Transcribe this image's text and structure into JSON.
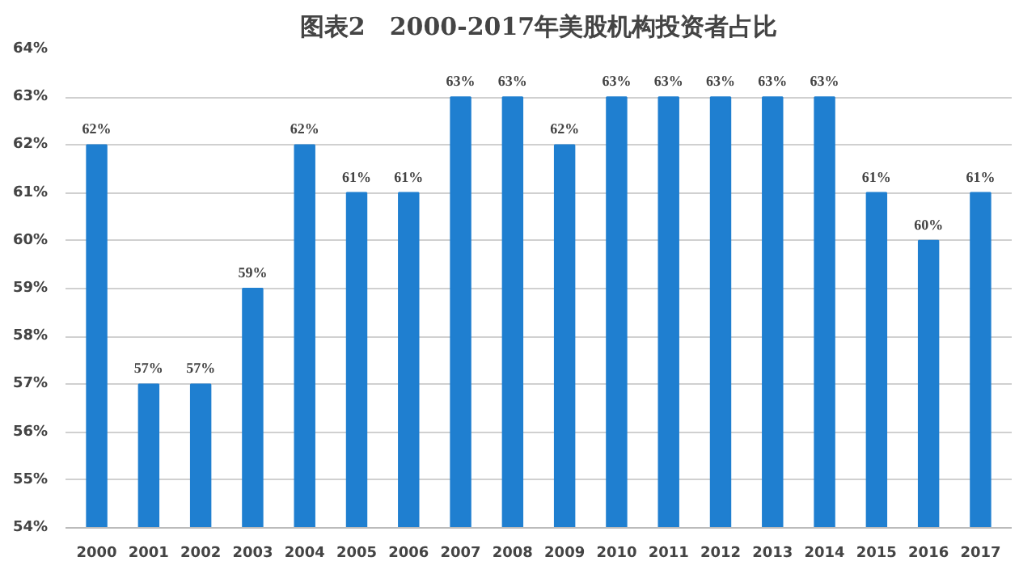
{
  "chart_data": {
    "type": "bar",
    "title": "图表2　2000-2017年美股机构投资者占比",
    "categories": [
      "2000",
      "2001",
      "2002",
      "2003",
      "2004",
      "2005",
      "2006",
      "2007",
      "2008",
      "2009",
      "2010",
      "2011",
      "2012",
      "2013",
      "2014",
      "2015",
      "2016",
      "2017"
    ],
    "values": [
      62,
      57,
      57,
      59,
      62,
      61,
      61,
      63,
      63,
      62,
      63,
      63,
      63,
      63,
      63,
      61,
      60,
      61
    ],
    "value_labels": [
      "62%",
      "57%",
      "57%",
      "59%",
      "62%",
      "61%",
      "61%",
      "63%",
      "63%",
      "62%",
      "63%",
      "63%",
      "63%",
      "63%",
      "63%",
      "61%",
      "60%",
      "61%"
    ],
    "color": "#1f7fd0",
    "ylim": [
      54,
      64
    ],
    "yticks": [
      {
        "value": 54,
        "label": "54%"
      },
      {
        "value": 55,
        "label": "55%"
      },
      {
        "value": 56,
        "label": "56%"
      },
      {
        "value": 57,
        "label": "57%"
      },
      {
        "value": 58,
        "label": "58%"
      },
      {
        "value": 59,
        "label": "59%"
      },
      {
        "value": 60,
        "label": "60%"
      },
      {
        "value": 61,
        "label": "61%"
      },
      {
        "value": 62,
        "label": "62%"
      },
      {
        "value": 63,
        "label": "63%"
      },
      {
        "value": 64,
        "label": "64%"
      }
    ],
    "grid": "y"
  }
}
